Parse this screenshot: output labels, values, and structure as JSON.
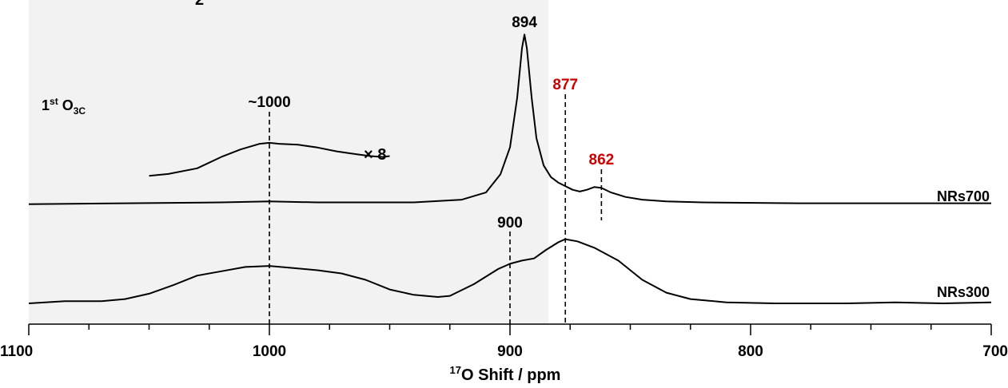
{
  "chart_data": {
    "type": "line",
    "title": "",
    "xlabel_sup": "17",
    "xlabel_main": "O Shift / ppm",
    "xlim": [
      1100,
      700
    ],
    "x_reversed": true,
    "x_ticks": [
      1100,
      1000,
      900,
      800,
      700
    ],
    "shaded_region": {
      "from": 1100,
      "to": 884
    },
    "header_fragment": "2",
    "region_label": {
      "main": "1",
      "sup": "st",
      "o": " O",
      "sub": "3C"
    },
    "scale_factor_label": "× 8",
    "series": [
      {
        "name": "NRs700",
        "points": [
          [
            1100,
            0.02
          ],
          [
            1060,
            0.03
          ],
          [
            1020,
            0.04
          ],
          [
            1000,
            0.05
          ],
          [
            980,
            0.04
          ],
          [
            940,
            0.04
          ],
          [
            920,
            0.07
          ],
          [
            910,
            0.15
          ],
          [
            904,
            0.35
          ],
          [
            900,
            0.65
          ],
          [
            897,
            1.2
          ],
          [
            895,
            1.75
          ],
          [
            894,
            1.9
          ],
          [
            893,
            1.75
          ],
          [
            891,
            1.2
          ],
          [
            889,
            0.75
          ],
          [
            886,
            0.45
          ],
          [
            883,
            0.32
          ],
          [
            880,
            0.26
          ],
          [
            877,
            0.22
          ],
          [
            874,
            0.18
          ],
          [
            871,
            0.16
          ],
          [
            868,
            0.18
          ],
          [
            865,
            0.21
          ],
          [
            862,
            0.2
          ],
          [
            858,
            0.15
          ],
          [
            852,
            0.1
          ],
          [
            845,
            0.07
          ],
          [
            835,
            0.05
          ],
          [
            820,
            0.04
          ],
          [
            780,
            0.03
          ],
          [
            700,
            0.03
          ]
        ],
        "inset_x8": [
          [
            1050,
            0.32
          ],
          [
            1042,
            0.34
          ],
          [
            1030,
            0.4
          ],
          [
            1020,
            0.52
          ],
          [
            1012,
            0.6
          ],
          [
            1004,
            0.66
          ],
          [
            1000,
            0.67
          ],
          [
            996,
            0.66
          ],
          [
            988,
            0.65
          ],
          [
            980,
            0.62
          ],
          [
            972,
            0.58
          ],
          [
            964,
            0.55
          ],
          [
            958,
            0.53
          ],
          [
            953,
            0.52
          ],
          [
            950,
            0.53
          ]
        ]
      },
      {
        "name": "NRs300",
        "points": [
          [
            1100,
            0.0
          ],
          [
            1085,
            0.02
          ],
          [
            1070,
            0.02
          ],
          [
            1060,
            0.04
          ],
          [
            1050,
            0.09
          ],
          [
            1040,
            0.17
          ],
          [
            1030,
            0.26
          ],
          [
            1020,
            0.3
          ],
          [
            1010,
            0.34
          ],
          [
            1000,
            0.35
          ],
          [
            990,
            0.33
          ],
          [
            980,
            0.31
          ],
          [
            970,
            0.28
          ],
          [
            960,
            0.22
          ],
          [
            950,
            0.13
          ],
          [
            940,
            0.08
          ],
          [
            930,
            0.06
          ],
          [
            925,
            0.07
          ],
          [
            915,
            0.18
          ],
          [
            905,
            0.32
          ],
          [
            900,
            0.37
          ],
          [
            895,
            0.4
          ],
          [
            890,
            0.42
          ],
          [
            885,
            0.5
          ],
          [
            880,
            0.57
          ],
          [
            877,
            0.6
          ],
          [
            872,
            0.58
          ],
          [
            865,
            0.52
          ],
          [
            855,
            0.4
          ],
          [
            845,
            0.22
          ],
          [
            835,
            0.1
          ],
          [
            825,
            0.04
          ],
          [
            810,
            0.01
          ],
          [
            790,
            0.0
          ],
          [
            760,
            0.0
          ],
          [
            740,
            0.01
          ],
          [
            720,
            0.0
          ],
          [
            700,
            0.01
          ]
        ]
      }
    ],
    "annotations": [
      {
        "text": "894",
        "x": 894,
        "color": "#000000",
        "dashed": false
      },
      {
        "text": "877",
        "x": 877,
        "color": "#cc0000",
        "dashed": true
      },
      {
        "text": "862",
        "x": 862,
        "color": "#cc0000",
        "dashed": true
      },
      {
        "text": "~1000",
        "x": 1000,
        "color": "#000000",
        "dashed": true
      },
      {
        "text": "900",
        "x": 900,
        "color": "#000000",
        "dashed": true
      }
    ],
    "colors": {
      "shade": "#f2f2f2",
      "line": "#000000",
      "highlight": "#cc0000"
    }
  }
}
